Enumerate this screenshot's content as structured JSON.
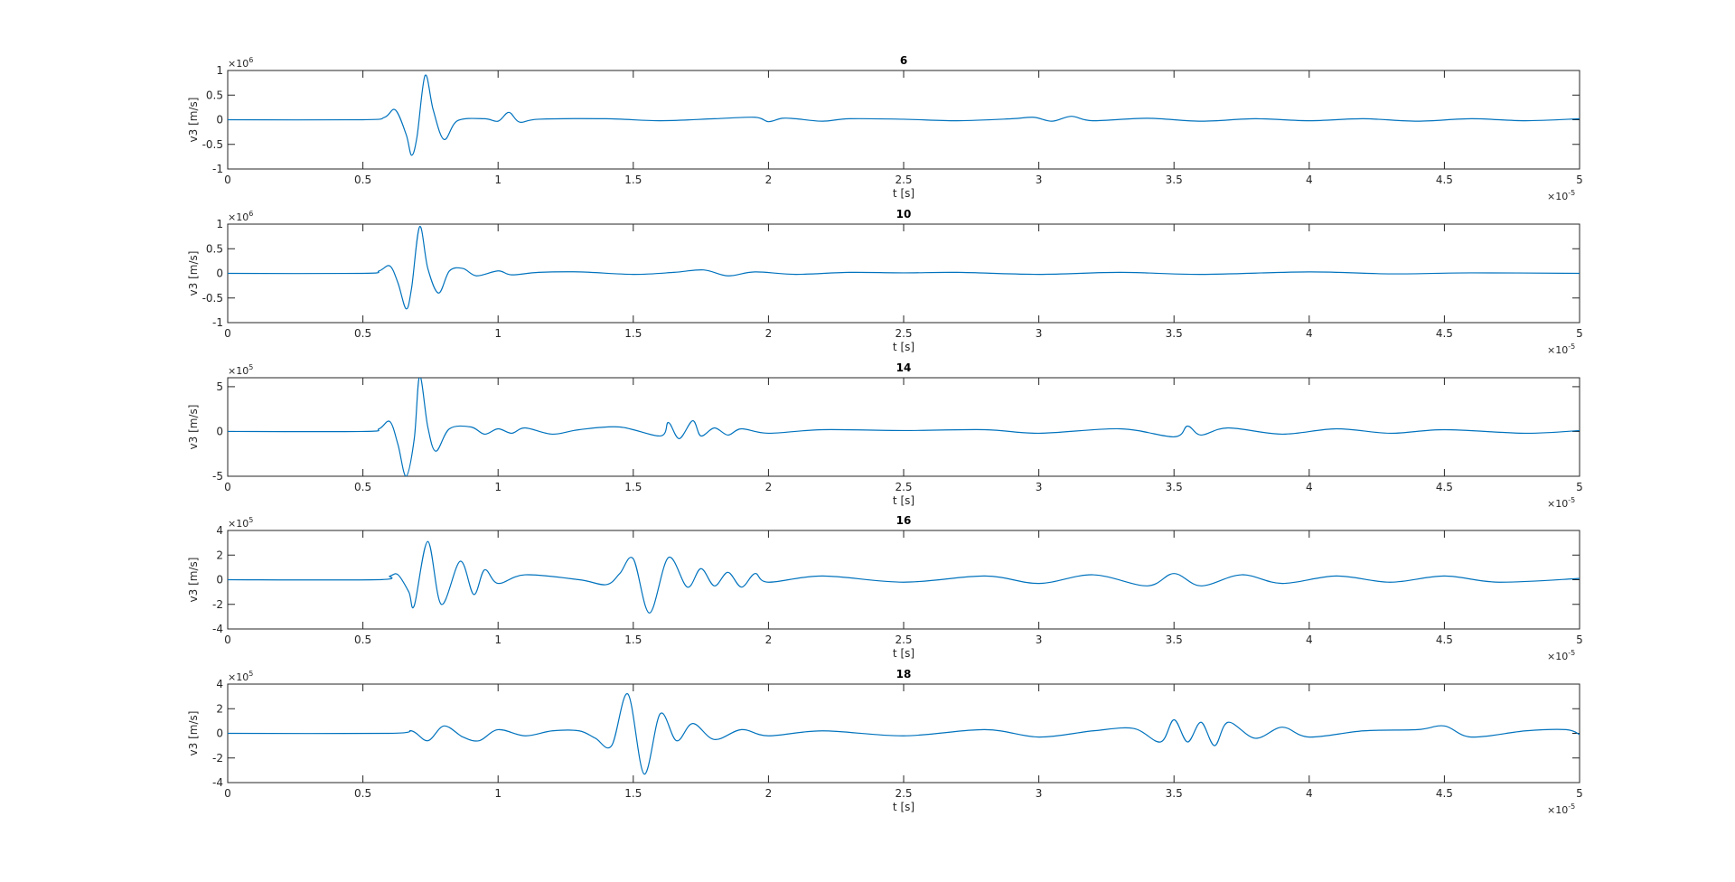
{
  "figure": {
    "background": "#ffffff",
    "line_color": "#0072BD",
    "axis_color": "#262626"
  },
  "chart_data": [
    {
      "type": "line",
      "title": "6",
      "xlabel": "t [s]",
      "ylabel": "v3 [m/s]",
      "xlim": [
        0,
        5
      ],
      "ylim": [
        -1,
        1
      ],
      "x_exponent_label": "×10",
      "x_exponent": "-5",
      "y_exponent_label": "×10",
      "y_exponent": "6",
      "xticks": [
        0,
        0.5,
        1,
        1.5,
        2,
        2.5,
        3,
        3.5,
        4,
        4.5,
        5
      ],
      "xtick_labels": [
        "0",
        "0.5",
        "1",
        "1.5",
        "2",
        "2.5",
        "3",
        "3.5",
        "4",
        "4.5",
        "5"
      ],
      "yticks": [
        -1,
        -0.5,
        0,
        0.5,
        1
      ],
      "ytick_labels": [
        "-1",
        "-0.5",
        "0",
        "0.5",
        "1"
      ],
      "x": [
        0,
        0.5,
        0.58,
        0.62,
        0.66,
        0.68,
        0.7,
        0.73,
        0.76,
        0.8,
        0.85,
        0.95,
        1.0,
        1.04,
        1.08,
        1.15,
        1.4,
        1.6,
        1.8,
        1.95,
        2.0,
        2.05,
        2.1,
        2.2,
        2.3,
        2.5,
        2.7,
        2.9,
        2.98,
        3.05,
        3.12,
        3.2,
        3.4,
        3.6,
        3.8,
        4.0,
        4.2,
        4.4,
        4.6,
        4.8,
        5.0
      ],
      "y": [
        0,
        0,
        0.05,
        0.2,
        -0.3,
        -0.72,
        -0.35,
        0.9,
        0.2,
        -0.4,
        -0.02,
        0.02,
        -0.03,
        0.15,
        -0.05,
        0.01,
        0.02,
        -0.02,
        0.02,
        0.05,
        -0.04,
        0.03,
        0.02,
        -0.03,
        0.02,
        0.01,
        -0.02,
        0.02,
        0.05,
        -0.03,
        0.07,
        -0.02,
        0.03,
        -0.03,
        0.02,
        -0.02,
        0.02,
        -0.03,
        0.02,
        -0.02,
        0.02
      ]
    },
    {
      "type": "line",
      "title": "10",
      "xlabel": "t [s]",
      "ylabel": "v3 [m/s]",
      "xlim": [
        0,
        5
      ],
      "ylim": [
        -1,
        1
      ],
      "x_exponent_label": "×10",
      "x_exponent": "-5",
      "y_exponent_label": "×10",
      "y_exponent": "6",
      "xticks": [
        0,
        0.5,
        1,
        1.5,
        2,
        2.5,
        3,
        3.5,
        4,
        4.5,
        5
      ],
      "xtick_labels": [
        "0",
        "0.5",
        "1",
        "1.5",
        "2",
        "2.5",
        "3",
        "3.5",
        "4",
        "4.5",
        "5"
      ],
      "yticks": [
        -1,
        -0.5,
        0,
        0.5,
        1
      ],
      "ytick_labels": [
        "-1",
        "-0.5",
        "0",
        "0.5",
        "1"
      ],
      "x": [
        0,
        0.5,
        0.56,
        0.6,
        0.63,
        0.66,
        0.68,
        0.71,
        0.74,
        0.78,
        0.82,
        0.87,
        0.92,
        1.0,
        1.05,
        1.15,
        1.3,
        1.5,
        1.65,
        1.76,
        1.85,
        1.95,
        2.1,
        2.3,
        2.5,
        2.7,
        3.0,
        3.3,
        3.6,
        4.0,
        4.3,
        4.6,
        5.0
      ],
      "y": [
        0,
        0,
        0.05,
        0.15,
        -0.2,
        -0.72,
        -0.3,
        0.95,
        0.1,
        -0.4,
        0.05,
        0.1,
        -0.05,
        0.05,
        -0.03,
        0.02,
        0.03,
        -0.02,
        0.02,
        0.07,
        -0.05,
        0.03,
        -0.02,
        0.02,
        0.01,
        0.02,
        -0.02,
        0.02,
        -0.02,
        0.03,
        -0.01,
        0.01,
        0.0
      ]
    },
    {
      "type": "line",
      "title": "14",
      "xlabel": "t [s]",
      "ylabel": "v3 [m/s]",
      "xlim": [
        0,
        5
      ],
      "ylim": [
        -5,
        6
      ],
      "x_exponent_label": "×10",
      "x_exponent": "-5",
      "y_exponent_label": "×10",
      "y_exponent": "5",
      "xticks": [
        0,
        0.5,
        1,
        1.5,
        2,
        2.5,
        3,
        3.5,
        4,
        4.5,
        5
      ],
      "xtick_labels": [
        "0",
        "0.5",
        "1",
        "1.5",
        "2",
        "2.5",
        "3",
        "3.5",
        "4",
        "4.5",
        "5"
      ],
      "yticks": [
        -5,
        0,
        5
      ],
      "ytick_labels": [
        "-5",
        "0",
        "5"
      ],
      "x": [
        0,
        0.5,
        0.56,
        0.6,
        0.63,
        0.66,
        0.69,
        0.71,
        0.74,
        0.77,
        0.82,
        0.9,
        0.95,
        1.0,
        1.05,
        1.1,
        1.2,
        1.3,
        1.45,
        1.6,
        1.63,
        1.67,
        1.72,
        1.75,
        1.8,
        1.85,
        1.9,
        2.0,
        2.2,
        2.5,
        2.8,
        3.0,
        3.3,
        3.5,
        3.55,
        3.6,
        3.7,
        3.9,
        4.1,
        4.3,
        4.5,
        4.8,
        5.0
      ],
      "y": [
        0,
        0,
        0.3,
        1.1,
        -1.5,
        -5.0,
        -0.8,
        6.2,
        0.5,
        -2.2,
        0.3,
        0.5,
        -0.3,
        0.3,
        -0.2,
        0.4,
        -0.3,
        0.2,
        0.5,
        -0.5,
        1.0,
        -0.8,
        1.2,
        -0.5,
        0.4,
        -0.4,
        0.3,
        -0.2,
        0.2,
        0.1,
        0.2,
        -0.2,
        0.3,
        -0.6,
        0.6,
        -0.4,
        0.4,
        -0.3,
        0.3,
        -0.2,
        0.2,
        -0.2,
        0.1
      ]
    },
    {
      "type": "line",
      "title": "16",
      "xlabel": "t [s]",
      "ylabel": "v3 [m/s]",
      "xlim": [
        0,
        5
      ],
      "ylim": [
        -4,
        4
      ],
      "x_exponent_label": "×10",
      "x_exponent": "-5",
      "y_exponent_label": "×10",
      "y_exponent": "5",
      "xticks": [
        0,
        0.5,
        1,
        1.5,
        2,
        2.5,
        3,
        3.5,
        4,
        4.5,
        5
      ],
      "xtick_labels": [
        "0",
        "0.5",
        "1",
        "1.5",
        "2",
        "2.5",
        "3",
        "3.5",
        "4",
        "4.5",
        "5"
      ],
      "yticks": [
        -4,
        -2,
        0,
        2,
        4
      ],
      "ytick_labels": [
        "-4",
        "-2",
        "0",
        "2",
        "4"
      ],
      "x": [
        0,
        0.55,
        0.6,
        0.63,
        0.67,
        0.69,
        0.74,
        0.79,
        0.86,
        0.91,
        0.95,
        1.0,
        1.1,
        1.3,
        1.4,
        1.45,
        1.5,
        1.56,
        1.63,
        1.7,
        1.75,
        1.8,
        1.85,
        1.9,
        1.95,
        2.0,
        2.2,
        2.5,
        2.8,
        3.0,
        3.2,
        3.4,
        3.5,
        3.6,
        3.75,
        3.9,
        4.1,
        4.3,
        4.5,
        4.7,
        5.0
      ],
      "y": [
        0,
        0,
        0.3,
        0.4,
        -1.0,
        -2.1,
        3.1,
        -2.0,
        1.5,
        -1.2,
        0.8,
        -0.3,
        0.4,
        0.0,
        -0.4,
        0.5,
        1.7,
        -2.7,
        1.8,
        -0.6,
        0.9,
        -0.5,
        0.6,
        -0.6,
        0.5,
        -0.2,
        0.3,
        -0.2,
        0.3,
        -0.3,
        0.4,
        -0.5,
        0.5,
        -0.5,
        0.4,
        -0.3,
        0.3,
        -0.2,
        0.3,
        -0.2,
        0.1
      ]
    },
    {
      "type": "line",
      "title": "18",
      "xlabel": "t [s]",
      "ylabel": "v3 [m/s]",
      "xlim": [
        0,
        5
      ],
      "ylim": [
        -4,
        4
      ],
      "x_exponent_label": "×10",
      "x_exponent": "-5",
      "y_exponent_label": "×10",
      "y_exponent": "5",
      "xticks": [
        0,
        0.5,
        1,
        1.5,
        2,
        2.5,
        3,
        3.5,
        4,
        4.5,
        5
      ],
      "xtick_labels": [
        "0",
        "0.5",
        "1",
        "1.5",
        "2",
        "2.5",
        "3",
        "3.5",
        "4",
        "4.5",
        "5"
      ],
      "yticks": [
        -4,
        -2,
        0,
        2,
        4
      ],
      "ytick_labels": [
        "-4",
        "-2",
        "0",
        "2",
        "4"
      ],
      "x": [
        0,
        0.6,
        0.68,
        0.74,
        0.8,
        0.87,
        0.93,
        1.0,
        1.1,
        1.2,
        1.3,
        1.36,
        1.42,
        1.48,
        1.54,
        1.6,
        1.66,
        1.72,
        1.8,
        1.9,
        2.0,
        2.2,
        2.5,
        2.8,
        3.0,
        3.2,
        3.35,
        3.45,
        3.5,
        3.55,
        3.6,
        3.65,
        3.7,
        3.8,
        3.9,
        4.0,
        4.2,
        4.4,
        4.5,
        4.6,
        4.8,
        4.95,
        5.0
      ],
      "y": [
        0,
        0,
        0.2,
        -0.6,
        0.6,
        -0.3,
        -0.6,
        0.3,
        -0.2,
        0.2,
        0.2,
        -0.4,
        -1.0,
        3.2,
        -3.3,
        1.6,
        -0.6,
        0.8,
        -0.5,
        0.3,
        -0.2,
        0.2,
        -0.2,
        0.3,
        -0.3,
        0.2,
        0.4,
        -0.7,
        1.1,
        -0.7,
        0.9,
        -1.0,
        0.9,
        -0.4,
        0.5,
        -0.3,
        0.2,
        0.3,
        0.6,
        -0.3,
        0.2,
        0.3,
        -0.1
      ]
    }
  ]
}
